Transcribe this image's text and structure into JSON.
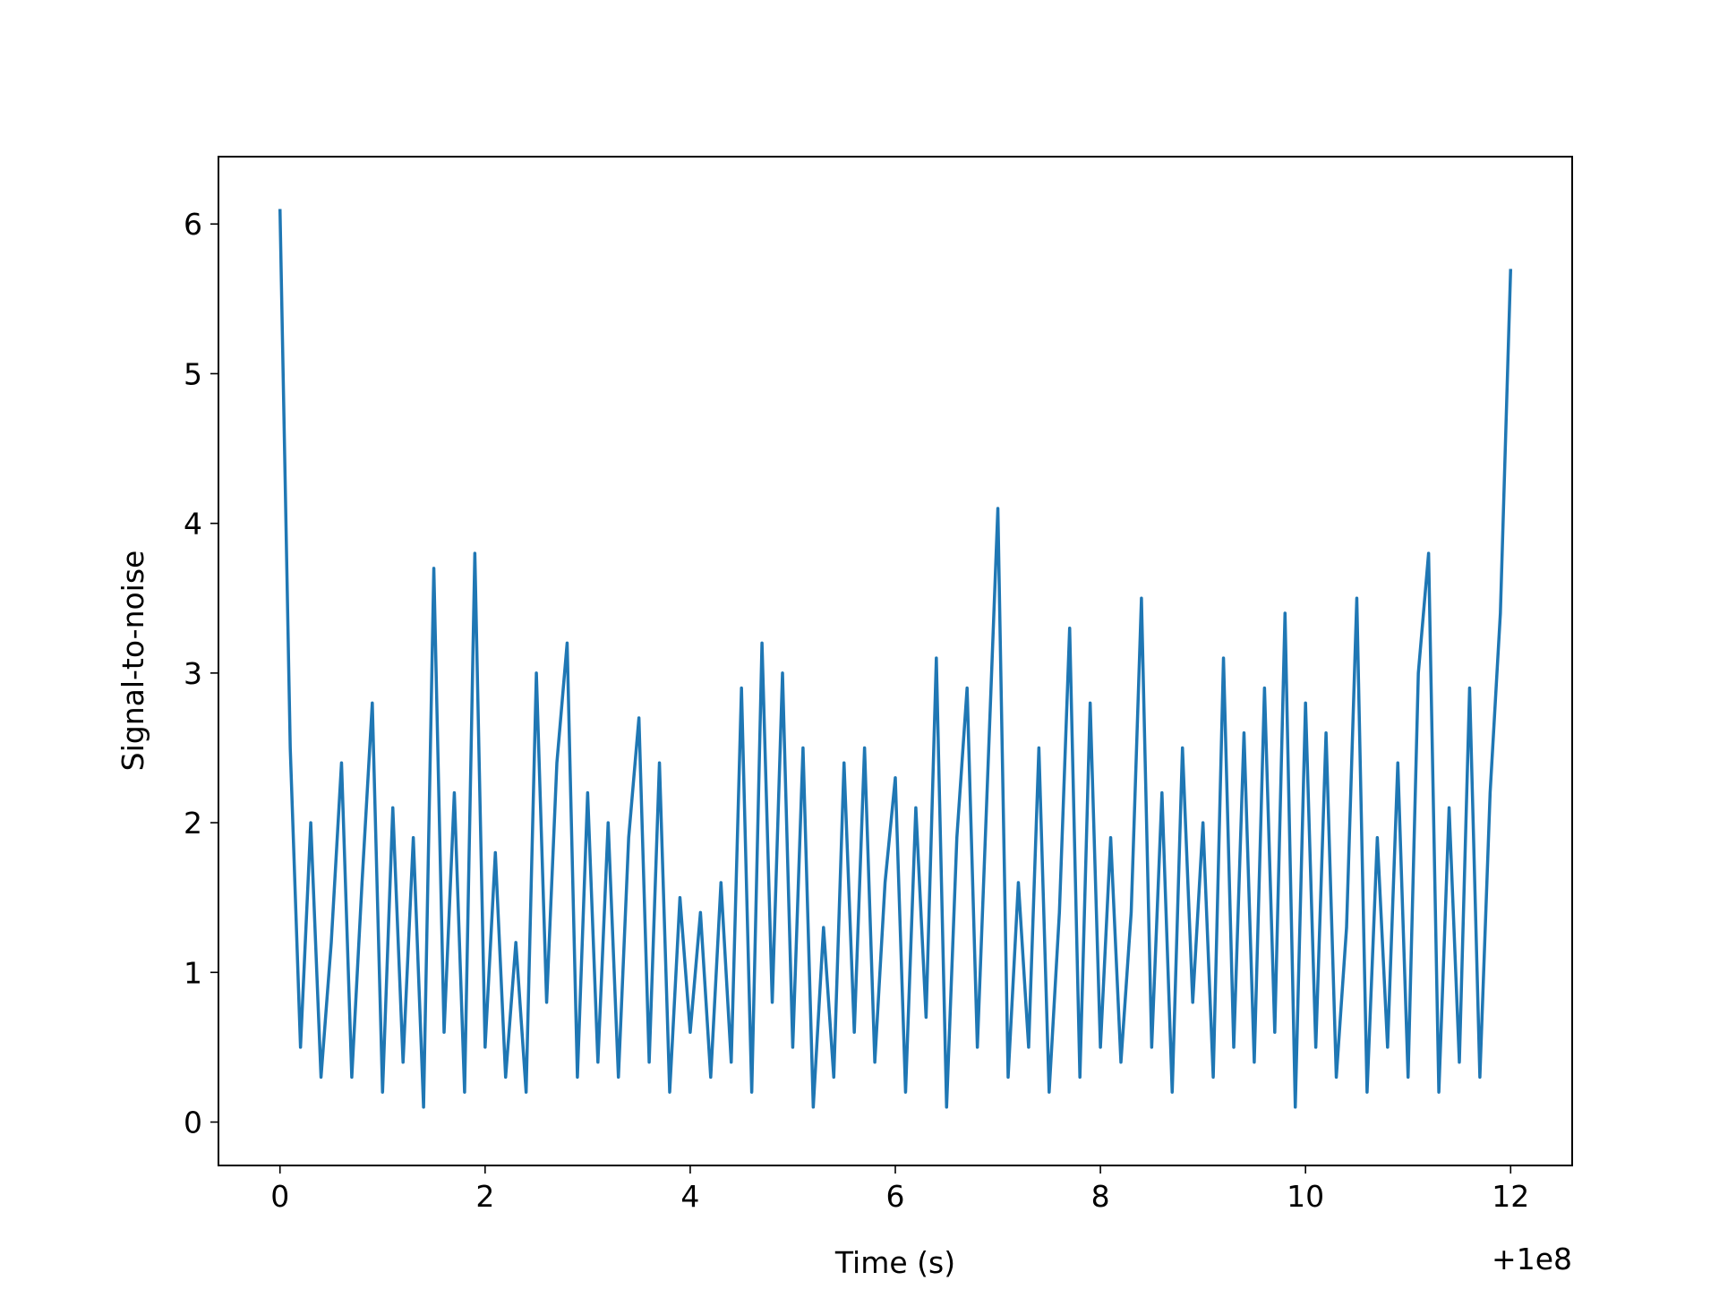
{
  "chart_data": {
    "type": "line",
    "x_label": "Time (s)",
    "y_label": "Signal-to-noise",
    "x_offset_text": "+1e8",
    "x": [
      0.0,
      0.1,
      0.2,
      0.3,
      0.4,
      0.5,
      0.6,
      0.7,
      0.8,
      0.9,
      1.0,
      1.1,
      1.2,
      1.3,
      1.4,
      1.5,
      1.6,
      1.7,
      1.8,
      1.9,
      2.0,
      2.1,
      2.2,
      2.3,
      2.4,
      2.5,
      2.6,
      2.7,
      2.8,
      2.9,
      3.0,
      3.1,
      3.2,
      3.3,
      3.4,
      3.5,
      3.6,
      3.7,
      3.8,
      3.9,
      4.0,
      4.1,
      4.2,
      4.3,
      4.4,
      4.5,
      4.6,
      4.7,
      4.8,
      4.9,
      5.0,
      5.1,
      5.2,
      5.3,
      5.4,
      5.5,
      5.6,
      5.7,
      5.8,
      5.9,
      6.0,
      6.1,
      6.2,
      6.3,
      6.4,
      6.5,
      6.6,
      6.7,
      6.8,
      6.9,
      7.0,
      7.1,
      7.2,
      7.3,
      7.4,
      7.5,
      7.6,
      7.7,
      7.8,
      7.9,
      8.0,
      8.1,
      8.2,
      8.3,
      8.4,
      8.5,
      8.6,
      8.7,
      8.8,
      8.9,
      9.0,
      9.1,
      9.2,
      9.3,
      9.4,
      9.5,
      9.6,
      9.7,
      9.8,
      9.9,
      10.0,
      10.1,
      10.2,
      10.3,
      10.4,
      10.5,
      10.6,
      10.7,
      10.8,
      10.9,
      11.0,
      11.1,
      11.2,
      11.3,
      11.4,
      11.5,
      11.6,
      11.7,
      11.8,
      11.9,
      12.0
    ],
    "values": [
      6.1,
      2.5,
      0.5,
      2.0,
      0.3,
      1.2,
      2.4,
      0.3,
      1.6,
      2.8,
      0.2,
      2.1,
      0.4,
      1.9,
      0.1,
      3.7,
      0.6,
      2.2,
      0.2,
      3.8,
      0.5,
      1.8,
      0.3,
      1.2,
      0.2,
      3.0,
      0.8,
      2.4,
      3.2,
      0.3,
      2.2,
      0.4,
      2.0,
      0.3,
      1.9,
      2.7,
      0.4,
      2.4,
      0.2,
      1.5,
      0.6,
      1.4,
      0.3,
      1.6,
      0.4,
      2.9,
      0.2,
      3.2,
      0.8,
      3.0,
      0.5,
      2.5,
      0.1,
      1.3,
      0.3,
      2.4,
      0.6,
      2.5,
      0.4,
      1.6,
      2.3,
      0.2,
      2.1,
      0.7,
      3.1,
      0.1,
      1.9,
      2.9,
      0.5,
      2.3,
      4.1,
      0.3,
      1.6,
      0.5,
      2.5,
      0.2,
      1.4,
      3.3,
      0.3,
      2.8,
      0.5,
      1.9,
      0.4,
      1.4,
      3.5,
      0.5,
      2.2,
      0.2,
      2.5,
      0.8,
      2.0,
      0.3,
      3.1,
      0.5,
      2.6,
      0.4,
      2.9,
      0.6,
      3.4,
      0.1,
      2.8,
      0.5,
      2.6,
      0.3,
      1.3,
      3.5,
      0.2,
      1.9,
      0.5,
      2.4,
      0.3,
      3.0,
      3.8,
      0.2,
      2.1,
      0.4,
      2.9,
      0.3,
      2.2,
      3.4,
      5.7
    ],
    "color": "#1f77b4",
    "xlim": [
      -0.6,
      12.6
    ],
    "xticks": [
      0,
      2,
      4,
      6,
      8,
      10,
      12
    ],
    "ylim": [
      -0.29,
      6.45
    ],
    "yticks": [
      0,
      1,
      2,
      3,
      4,
      5,
      6
    ],
    "grid": false
  }
}
